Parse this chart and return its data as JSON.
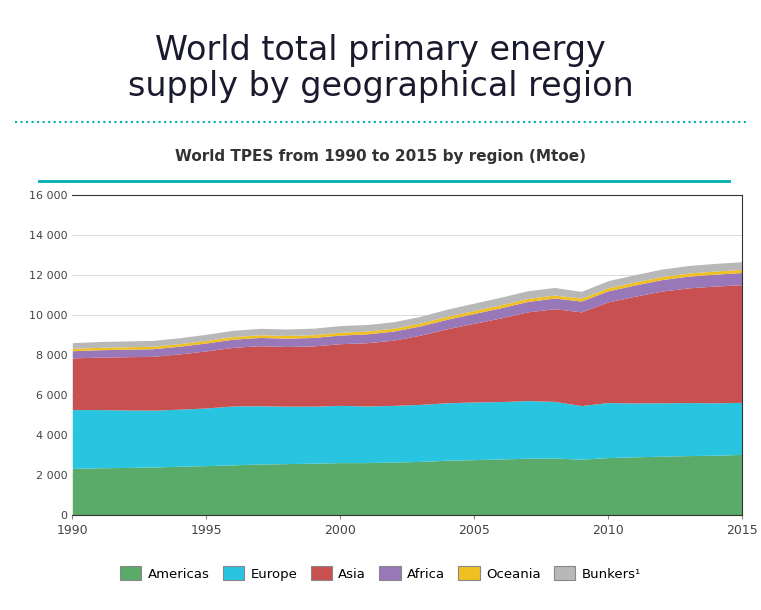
{
  "title_line1": "World total primary energy",
  "title_line2": "supply by geographical region",
  "subtitle": "World TPES from 1990 to 2015 by region (Mtoe)",
  "title_color": "#1a1a2e",
  "title_fontsize": 24,
  "subtitle_fontsize": 11,
  "dotted_line_color": "#00b0b0",
  "teal_line_color": "#00b0b0",
  "years": [
    1990,
    1991,
    1992,
    1993,
    1994,
    1995,
    1996,
    1997,
    1998,
    1999,
    2000,
    2001,
    2002,
    2003,
    2004,
    2005,
    2006,
    2007,
    2008,
    2009,
    2010,
    2011,
    2012,
    2013,
    2014,
    2015
  ],
  "Americas": [
    2350,
    2380,
    2400,
    2420,
    2460,
    2490,
    2530,
    2570,
    2590,
    2610,
    2640,
    2640,
    2670,
    2700,
    2760,
    2790,
    2820,
    2860,
    2870,
    2810,
    2890,
    2930,
    2960,
    2990,
    3010,
    3050
  ],
  "Europe": [
    2940,
    2910,
    2870,
    2840,
    2850,
    2880,
    2940,
    2910,
    2870,
    2850,
    2860,
    2830,
    2830,
    2850,
    2870,
    2880,
    2870,
    2880,
    2830,
    2680,
    2750,
    2690,
    2670,
    2650,
    2620,
    2600
  ],
  "Asia": [
    2580,
    2620,
    2660,
    2690,
    2760,
    2850,
    2930,
    3000,
    2980,
    3010,
    3080,
    3160,
    3260,
    3460,
    3700,
    3930,
    4180,
    4430,
    4630,
    4680,
    5030,
    5330,
    5580,
    5730,
    5830,
    5880
  ],
  "Africa": [
    360,
    368,
    375,
    380,
    387,
    397,
    407,
    413,
    418,
    423,
    432,
    442,
    452,
    462,
    477,
    492,
    507,
    522,
    532,
    542,
    552,
    562,
    572,
    587,
    597,
    607
  ],
  "Oceania": [
    118,
    120,
    122,
    123,
    125,
    128,
    131,
    133,
    135,
    136,
    138,
    140,
    141,
    142,
    144,
    146,
    148,
    149,
    150,
    146,
    150,
    151,
    152,
    153,
    154,
    156
  ],
  "Bunkers": [
    285,
    290,
    292,
    292,
    297,
    307,
    312,
    322,
    322,
    327,
    337,
    327,
    327,
    337,
    357,
    372,
    382,
    387,
    377,
    337,
    357,
    367,
    372,
    377,
    382,
    387
  ],
  "colors": {
    "Americas": "#5aaa6a",
    "Europe": "#29c4e0",
    "Asia": "#c95050",
    "Africa": "#9878b8",
    "Oceania": "#f0c020",
    "Bunkers": "#b8b8b8"
  },
  "ylim": [
    0,
    16000
  ],
  "yticks": [
    0,
    2000,
    4000,
    6000,
    8000,
    10000,
    12000,
    14000,
    16000
  ],
  "ytick_labels": [
    "0",
    "2 000",
    "4 000",
    "6 000",
    "8 000",
    "10 000",
    "12 000",
    "14 000",
    "16 000"
  ],
  "xticks": [
    1990,
    1995,
    2000,
    2005,
    2010,
    2015
  ],
  "legend_labels": [
    "Americas",
    "Europe",
    "Asia",
    "Africa",
    "Oceania",
    "Bunkers¹"
  ],
  "bg_color": "#ffffff"
}
